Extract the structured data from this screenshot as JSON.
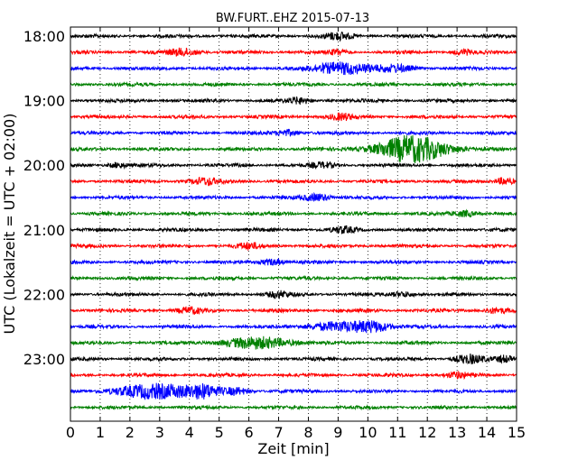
{
  "chart_data": {
    "type": "line",
    "title": "BW.FURT..EHZ 2015-07-13",
    "xlabel": "Zeit  [min]",
    "ylabel": "UTC (Lokalzeit = UTC + 02:00)",
    "xlim": [
      0,
      15
    ],
    "x_ticks": [
      "0",
      "1",
      "2",
      "3",
      "4",
      "5",
      "6",
      "7",
      "8",
      "9",
      "10",
      "11",
      "12",
      "13",
      "14",
      "15"
    ],
    "y_tick_labels": [
      "18:00",
      "19:00",
      "20:00",
      "21:00",
      "22:00",
      "23:00"
    ],
    "start_time": "18:00",
    "trace_interval_min": 15,
    "trace_colors": [
      "#000000",
      "#ff0000",
      "#0000ff",
      "#008000"
    ],
    "grid": {
      "x": "dotted",
      "y": false
    },
    "traces": [
      {
        "start": "18:00",
        "color": "#000000",
        "bursts": [
          [
            9.0,
            0.5,
            1.6
          ]
        ]
      },
      {
        "start": "18:15",
        "color": "#ff0000",
        "bursts": [
          [
            3.8,
            0.5,
            1.8
          ],
          [
            9.0,
            0.3,
            1.2
          ],
          [
            13.2,
            0.3,
            1.2
          ]
        ]
      },
      {
        "start": "18:30",
        "color": "#0000ff",
        "bursts": [
          [
            9.2,
            1.0,
            3.0
          ],
          [
            11.0,
            0.6,
            1.4
          ]
        ]
      },
      {
        "start": "18:45",
        "color": "#008000",
        "bursts": []
      },
      {
        "start": "19:00",
        "color": "#000000",
        "bursts": [
          [
            7.7,
            0.4,
            1.4
          ]
        ]
      },
      {
        "start": "19:15",
        "color": "#ff0000",
        "bursts": [
          [
            9.1,
            0.4,
            1.5
          ]
        ]
      },
      {
        "start": "19:30",
        "color": "#0000ff",
        "bursts": [
          [
            7.3,
            0.4,
            1.4
          ]
        ]
      },
      {
        "start": "19:45",
        "color": "#008000",
        "bursts": [
          [
            11.5,
            1.2,
            6.5
          ]
        ]
      },
      {
        "start": "20:00",
        "color": "#000000",
        "bursts": [
          [
            1.6,
            0.3,
            1.3
          ],
          [
            8.5,
            0.4,
            1.2
          ]
        ]
      },
      {
        "start": "20:15",
        "color": "#ff0000",
        "bursts": [
          [
            4.5,
            0.5,
            1.6
          ],
          [
            14.6,
            0.3,
            1.8
          ]
        ]
      },
      {
        "start": "20:30",
        "color": "#0000ff",
        "bursts": [
          [
            8.3,
            0.5,
            1.8
          ]
        ]
      },
      {
        "start": "20:45",
        "color": "#008000",
        "bursts": [
          [
            13.3,
            0.4,
            1.4
          ]
        ]
      },
      {
        "start": "21:00",
        "color": "#000000",
        "bursts": [
          [
            9.2,
            0.4,
            1.4
          ]
        ]
      },
      {
        "start": "21:15",
        "color": "#ff0000",
        "bursts": [
          [
            6.0,
            0.4,
            1.3
          ]
        ]
      },
      {
        "start": "21:30",
        "color": "#0000ff",
        "bursts": [
          [
            6.8,
            0.4,
            1.4
          ]
        ]
      },
      {
        "start": "21:45",
        "color": "#008000",
        "bursts": []
      },
      {
        "start": "22:00",
        "color": "#000000",
        "bursts": [
          [
            7.0,
            0.4,
            1.4
          ],
          [
            11.2,
            0.4,
            1.2
          ]
        ]
      },
      {
        "start": "22:15",
        "color": "#ff0000",
        "bursts": [
          [
            4.0,
            0.4,
            1.4
          ],
          [
            14.3,
            0.4,
            1.3
          ]
        ]
      },
      {
        "start": "22:30",
        "color": "#0000ff",
        "bursts": [
          [
            9.0,
            1.1,
            2.0
          ],
          [
            10.2,
            0.6,
            2.2
          ]
        ]
      },
      {
        "start": "22:45",
        "color": "#008000",
        "bursts": [
          [
            6.3,
            1.2,
            2.6
          ]
        ]
      },
      {
        "start": "23:00",
        "color": "#000000",
        "bursts": [
          [
            13.4,
            0.5,
            2.0
          ],
          [
            14.6,
            0.3,
            1.6
          ]
        ]
      },
      {
        "start": "23:15",
        "color": "#ff0000",
        "bursts": [
          [
            13.0,
            0.4,
            1.3
          ]
        ]
      },
      {
        "start": "23:30",
        "color": "#0000ff",
        "bursts": [
          [
            3.0,
            1.4,
            3.6
          ],
          [
            4.5,
            0.5,
            2.2
          ],
          [
            5.6,
            0.4,
            1.6
          ]
        ]
      },
      {
        "start": "23:45",
        "color": "#008000",
        "bursts": []
      }
    ]
  }
}
